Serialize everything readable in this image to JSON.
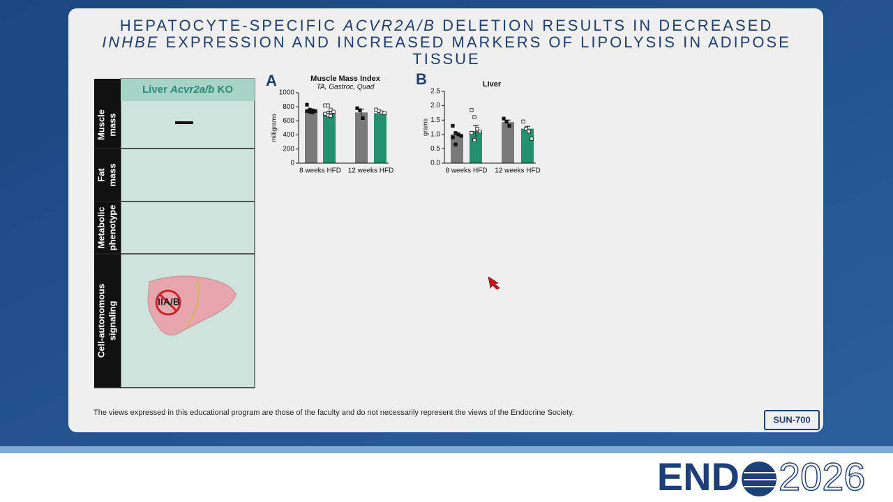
{
  "slide": {
    "title_lines": [
      [
        {
          "text": "HEPATOCYTE-SPECIFIC "
        },
        {
          "text": "ACVR2A/B",
          "italic": true
        },
        {
          "text": " DELETION RESULTS IN DECREASED"
        }
      ],
      [
        {
          "text": "INHBE",
          "italic": true
        },
        {
          "text": " EXPRESSION AND INCREASED MARKERS OF LIPOLYSIS IN ADIPOSE"
        }
      ],
      [
        {
          "text": "TISSUE"
        }
      ]
    ],
    "disclaimer": "The views expressed in this educational program are those of the faculty and do not necessarily represent the views of the Endocrine Society.",
    "poster_id": "SUN-700",
    "logo": {
      "left": "END",
      "right": "2026"
    }
  },
  "table": {
    "header": [
      {
        "text": "Liver "
      },
      {
        "text": "Acvr2a/b",
        "italic": true
      },
      {
        "text": " KO"
      }
    ],
    "rows": [
      [
        "Muscle",
        "mass"
      ],
      [
        "Fat",
        "mass"
      ],
      [
        "Metabolic",
        "phenotype"
      ],
      [
        "Cell-autonomous",
        "signaling"
      ]
    ],
    "icon_label": "IIA/B"
  },
  "chart_data": [
    {
      "type": "bar",
      "panel": "A",
      "title": "Muscle Mass Index",
      "subtitle": "TA, Gastroc, Quad",
      "y_label": "milligrams",
      "categories": [
        "8 weeks HFD",
        "12 weeks HFD"
      ],
      "series": [
        {
          "color": "#7a7a7a",
          "values": [
            740,
            720
          ],
          "errors": [
            20,
            50
          ],
          "points": [
            [
              830,
              760,
              750,
              740,
              740,
              730,
              720
            ],
            [
              780,
              750,
              640
            ]
          ],
          "point_fill": "#111111"
        },
        {
          "color": "#23906e",
          "values": [
            710,
            710
          ],
          "errors": [
            25,
            15
          ],
          "points": [
            [
              820,
              820,
              760,
              730,
              700,
              680,
              670
            ],
            [
              760,
              740,
              720,
              710
            ]
          ],
          "point_fill": "#ffffff"
        }
      ],
      "ylim": [
        0,
        1000
      ],
      "yticks": [
        0,
        200,
        400,
        600,
        800,
        1000
      ]
    },
    {
      "type": "bar",
      "panel": "B",
      "title": "Liver",
      "y_label": "grams",
      "categories": [
        "8 weeks HFD",
        "12 weeks HFD"
      ],
      "series": [
        {
          "color": "#7a7a7a",
          "values": [
            1.0,
            1.43
          ],
          "errors": [
            0.05,
            0.07
          ],
          "points": [
            [
              1.3,
              1.05,
              1.0,
              0.95,
              0.9,
              0.65
            ],
            [
              1.55,
              1.45,
              1.3
            ]
          ],
          "point_fill": "#111111"
        },
        {
          "color": "#23906e",
          "values": [
            1.12,
            1.2
          ],
          "errors": [
            0.2,
            0.08
          ],
          "points": [
            [
              1.85,
              1.6,
              1.2,
              1.1,
              1.05,
              0.8
            ],
            [
              1.45,
              1.2,
              1.1,
              0.85
            ]
          ],
          "point_fill": "#ffffff"
        }
      ],
      "ylim": [
        0,
        2.5
      ],
      "yticks": [
        {
          "value": 0,
          "label": "0.0"
        },
        {
          "value": 0.5,
          "label": "0.5"
        },
        {
          "value": 1,
          "label": "1.0"
        },
        {
          "value": 1.5,
          "label": "1.5"
        },
        {
          "value": 2,
          "label": "2.0"
        },
        {
          "value": 2.5,
          "label": "2.5"
        }
      ]
    }
  ]
}
